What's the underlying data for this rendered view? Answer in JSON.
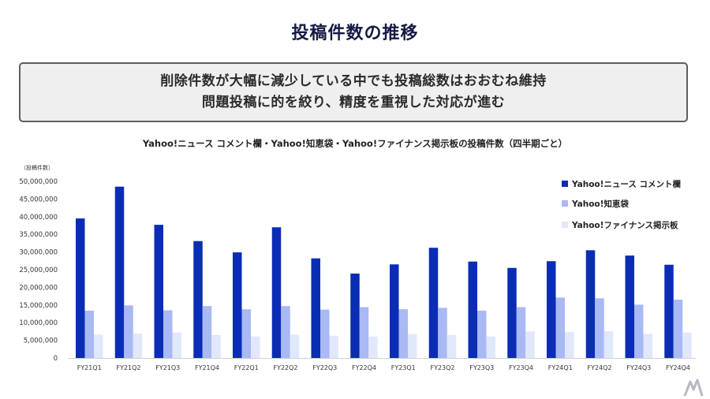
{
  "page": {
    "title": "投稿件数の推移",
    "summary_lines": [
      "削除件数が大幅に減少している中でも投稿総数はおおむね維持",
      "問題投稿に的を絞り、精度を重視した対応が進む"
    ]
  },
  "chart_data": {
    "type": "bar",
    "title": "Yahoo!ニュース コメント欄・Yahoo!知恵袋・Yahoo!ファイナンス掲示板の投稿件数（四半期ごと）",
    "ylabel": "（投稿件数）",
    "xlabel": "",
    "ylim": [
      0,
      50000000
    ],
    "yticks": [
      0,
      5000000,
      10000000,
      15000000,
      20000000,
      25000000,
      30000000,
      35000000,
      40000000,
      45000000,
      50000000
    ],
    "ytick_labels": [
      "0",
      "5,000,000",
      "10,000,000",
      "15,000,000",
      "20,000,000",
      "25,000,000",
      "30,000,000",
      "35,000,000",
      "40,000,000",
      "45,000,000",
      "50,000,000"
    ],
    "grid": false,
    "legend_position": "right",
    "categories": [
      "FY21Q1",
      "FY21Q2",
      "FY21Q3",
      "FY21Q4",
      "FY22Q1",
      "FY22Q2",
      "FY22Q3",
      "FY22Q4",
      "FY23Q1",
      "FY23Q2",
      "FY23Q3",
      "FY23Q4",
      "FY24Q1",
      "FY24Q2",
      "FY24Q3",
      "FY24Q4"
    ],
    "series": [
      {
        "name": "Yahoo!ニュース コメント欄",
        "color": "#0a2db4",
        "values": [
          39500000,
          48500000,
          37700000,
          33100000,
          29900000,
          37000000,
          28200000,
          23900000,
          26500000,
          31200000,
          27300000,
          25500000,
          27400000,
          30500000,
          29000000,
          26400000
        ]
      },
      {
        "name": "Yahoo!知恵袋",
        "color": "#a9b9f3",
        "values": [
          13400000,
          14900000,
          13500000,
          14700000,
          13800000,
          14700000,
          13700000,
          14400000,
          13800000,
          14200000,
          13400000,
          14400000,
          17100000,
          16900000,
          15100000,
          16500000
        ]
      },
      {
        "name": "Yahoo!ファイナンス掲示板",
        "color": "#e2e8fb",
        "values": [
          6600000,
          6900000,
          7200000,
          6500000,
          6100000,
          6600000,
          6300000,
          6100000,
          6800000,
          6500000,
          6100000,
          7500000,
          7400000,
          7600000,
          6800000,
          7200000
        ]
      }
    ]
  }
}
